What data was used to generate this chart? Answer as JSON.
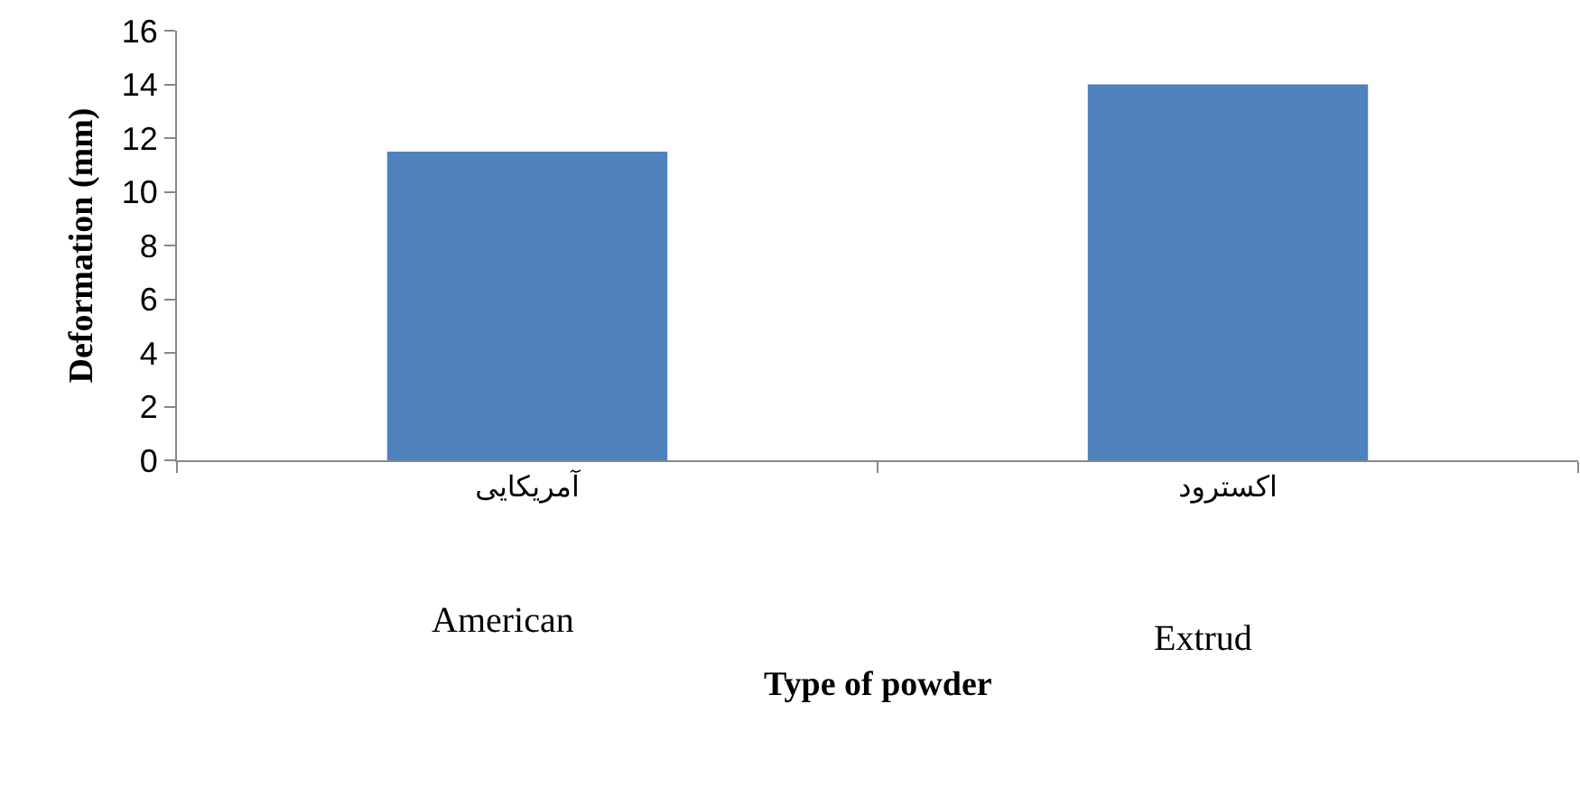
{
  "chart_data": {
    "type": "bar",
    "categories": [
      "آمریکایی",
      "اکسترود"
    ],
    "values": [
      11.5,
      14
    ],
    "color": "#4f81bd",
    "ylim": [
      0,
      16
    ],
    "yticks": [
      0,
      2,
      4,
      6,
      8,
      10,
      12,
      14,
      16
    ],
    "xlabel": "Type of powder",
    "ylabel": "Deformation (mm)",
    "annotations": [
      "American",
      "Extrud"
    ]
  }
}
